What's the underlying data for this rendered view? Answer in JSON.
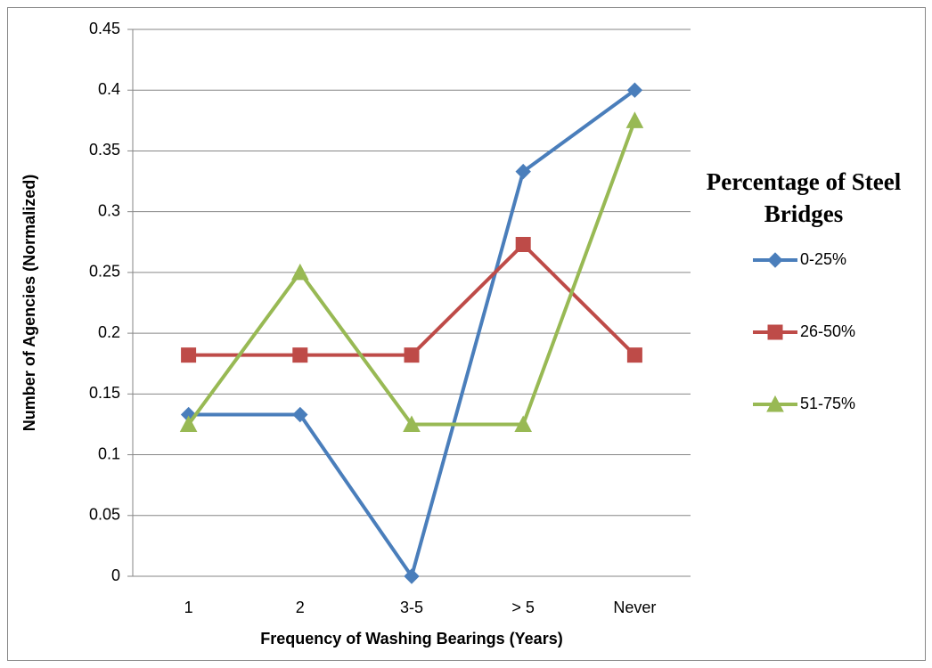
{
  "chart_data": {
    "type": "line",
    "xlabel": "Frequency of Washing Bearings (Years)",
    "ylabel": "Number of Agencies (Normalized)",
    "legend_title": "Percentage of Steel Bridges",
    "legend_position": "right",
    "categories": [
      "1",
      "2",
      "3-5",
      "> 5",
      "Never"
    ],
    "series": [
      {
        "name": "0-25%",
        "color": "#4a7ebb",
        "marker": "diamond",
        "values": [
          0.133,
          0.133,
          0,
          0.333,
          0.4
        ]
      },
      {
        "name": "26-50%",
        "color": "#be4b48",
        "marker": "square",
        "values": [
          0.182,
          0.182,
          0.182,
          0.273,
          0.182
        ]
      },
      {
        "name": "51-75%",
        "color": "#98b954",
        "marker": "triangle",
        "values": [
          0.125,
          0.25,
          0.125,
          0.125,
          0.375
        ]
      }
    ],
    "ylim": [
      0,
      0.45
    ],
    "yticks": [
      0,
      0.05,
      0.1,
      0.15,
      0.2,
      0.25,
      0.3,
      0.35,
      0.4,
      0.45
    ],
    "grid": true
  }
}
